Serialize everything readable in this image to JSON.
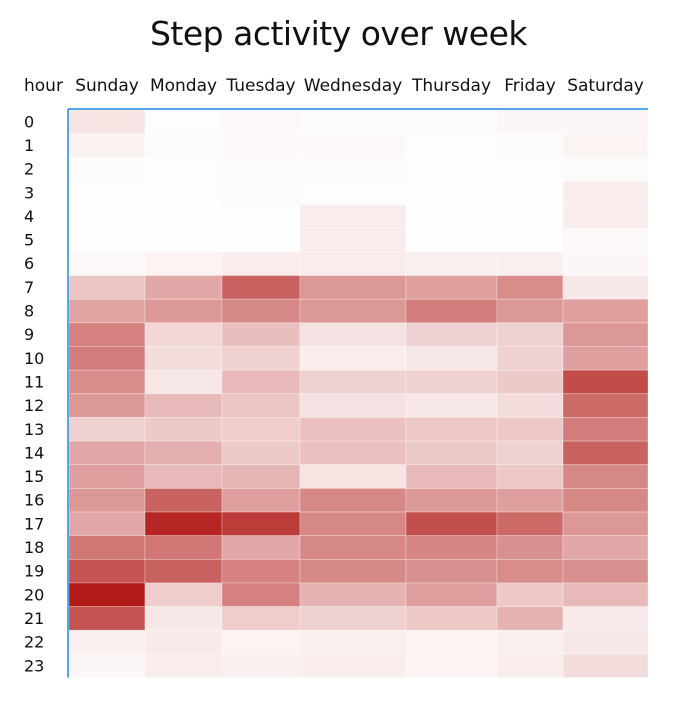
{
  "chart_data": {
    "type": "heatmap",
    "title": "Step activity over week",
    "row_header": "hour",
    "columns": [
      "Sunday",
      "Monday",
      "Tuesday",
      "Wednesday",
      "Thursday",
      "Friday",
      "Saturday"
    ],
    "rows": [
      "0",
      "1",
      "2",
      "3",
      "4",
      "5",
      "6",
      "7",
      "8",
      "9",
      "10",
      "11",
      "12",
      "13",
      "14",
      "15",
      "16",
      "17",
      "18",
      "19",
      "20",
      "21",
      "22",
      "23"
    ],
    "color_low": "#ffffff",
    "color_high": "#b01a17",
    "value_range": [
      0,
      100
    ],
    "values": [
      [
        12,
        1,
        3,
        2,
        2,
        4,
        4
      ],
      [
        6,
        2,
        3,
        3,
        1,
        2,
        5
      ],
      [
        2,
        1,
        2,
        2,
        1,
        1,
        2
      ],
      [
        1,
        1,
        2,
        1,
        1,
        1,
        8
      ],
      [
        1,
        1,
        1,
        8,
        1,
        1,
        8
      ],
      [
        1,
        1,
        1,
        8,
        1,
        1,
        3
      ],
      [
        3,
        5,
        8,
        8,
        7,
        7,
        4
      ],
      [
        25,
        38,
        68,
        45,
        42,
        50,
        10
      ],
      [
        40,
        45,
        52,
        45,
        57,
        45,
        42
      ],
      [
        55,
        18,
        28,
        13,
        20,
        20,
        45
      ],
      [
        57,
        15,
        20,
        8,
        11,
        20,
        42
      ],
      [
        50,
        11,
        30,
        20,
        20,
        23,
        78
      ],
      [
        45,
        30,
        25,
        13,
        11,
        15,
        65
      ],
      [
        20,
        23,
        22,
        27,
        24,
        24,
        57
      ],
      [
        38,
        35,
        23,
        27,
        23,
        20,
        68
      ],
      [
        42,
        30,
        32,
        12,
        30,
        24,
        52
      ],
      [
        45,
        68,
        42,
        52,
        45,
        42,
        52
      ],
      [
        38,
        95,
        85,
        52,
        77,
        65,
        45
      ],
      [
        60,
        60,
        38,
        52,
        53,
        48,
        38
      ],
      [
        75,
        68,
        55,
        52,
        48,
        50,
        48
      ],
      [
        100,
        22,
        55,
        33,
        42,
        24,
        30
      ],
      [
        75,
        10,
        22,
        20,
        24,
        33,
        9
      ],
      [
        7,
        9,
        5,
        7,
        5,
        7,
        10
      ],
      [
        4,
        8,
        7,
        8,
        5,
        8,
        15
      ]
    ]
  }
}
